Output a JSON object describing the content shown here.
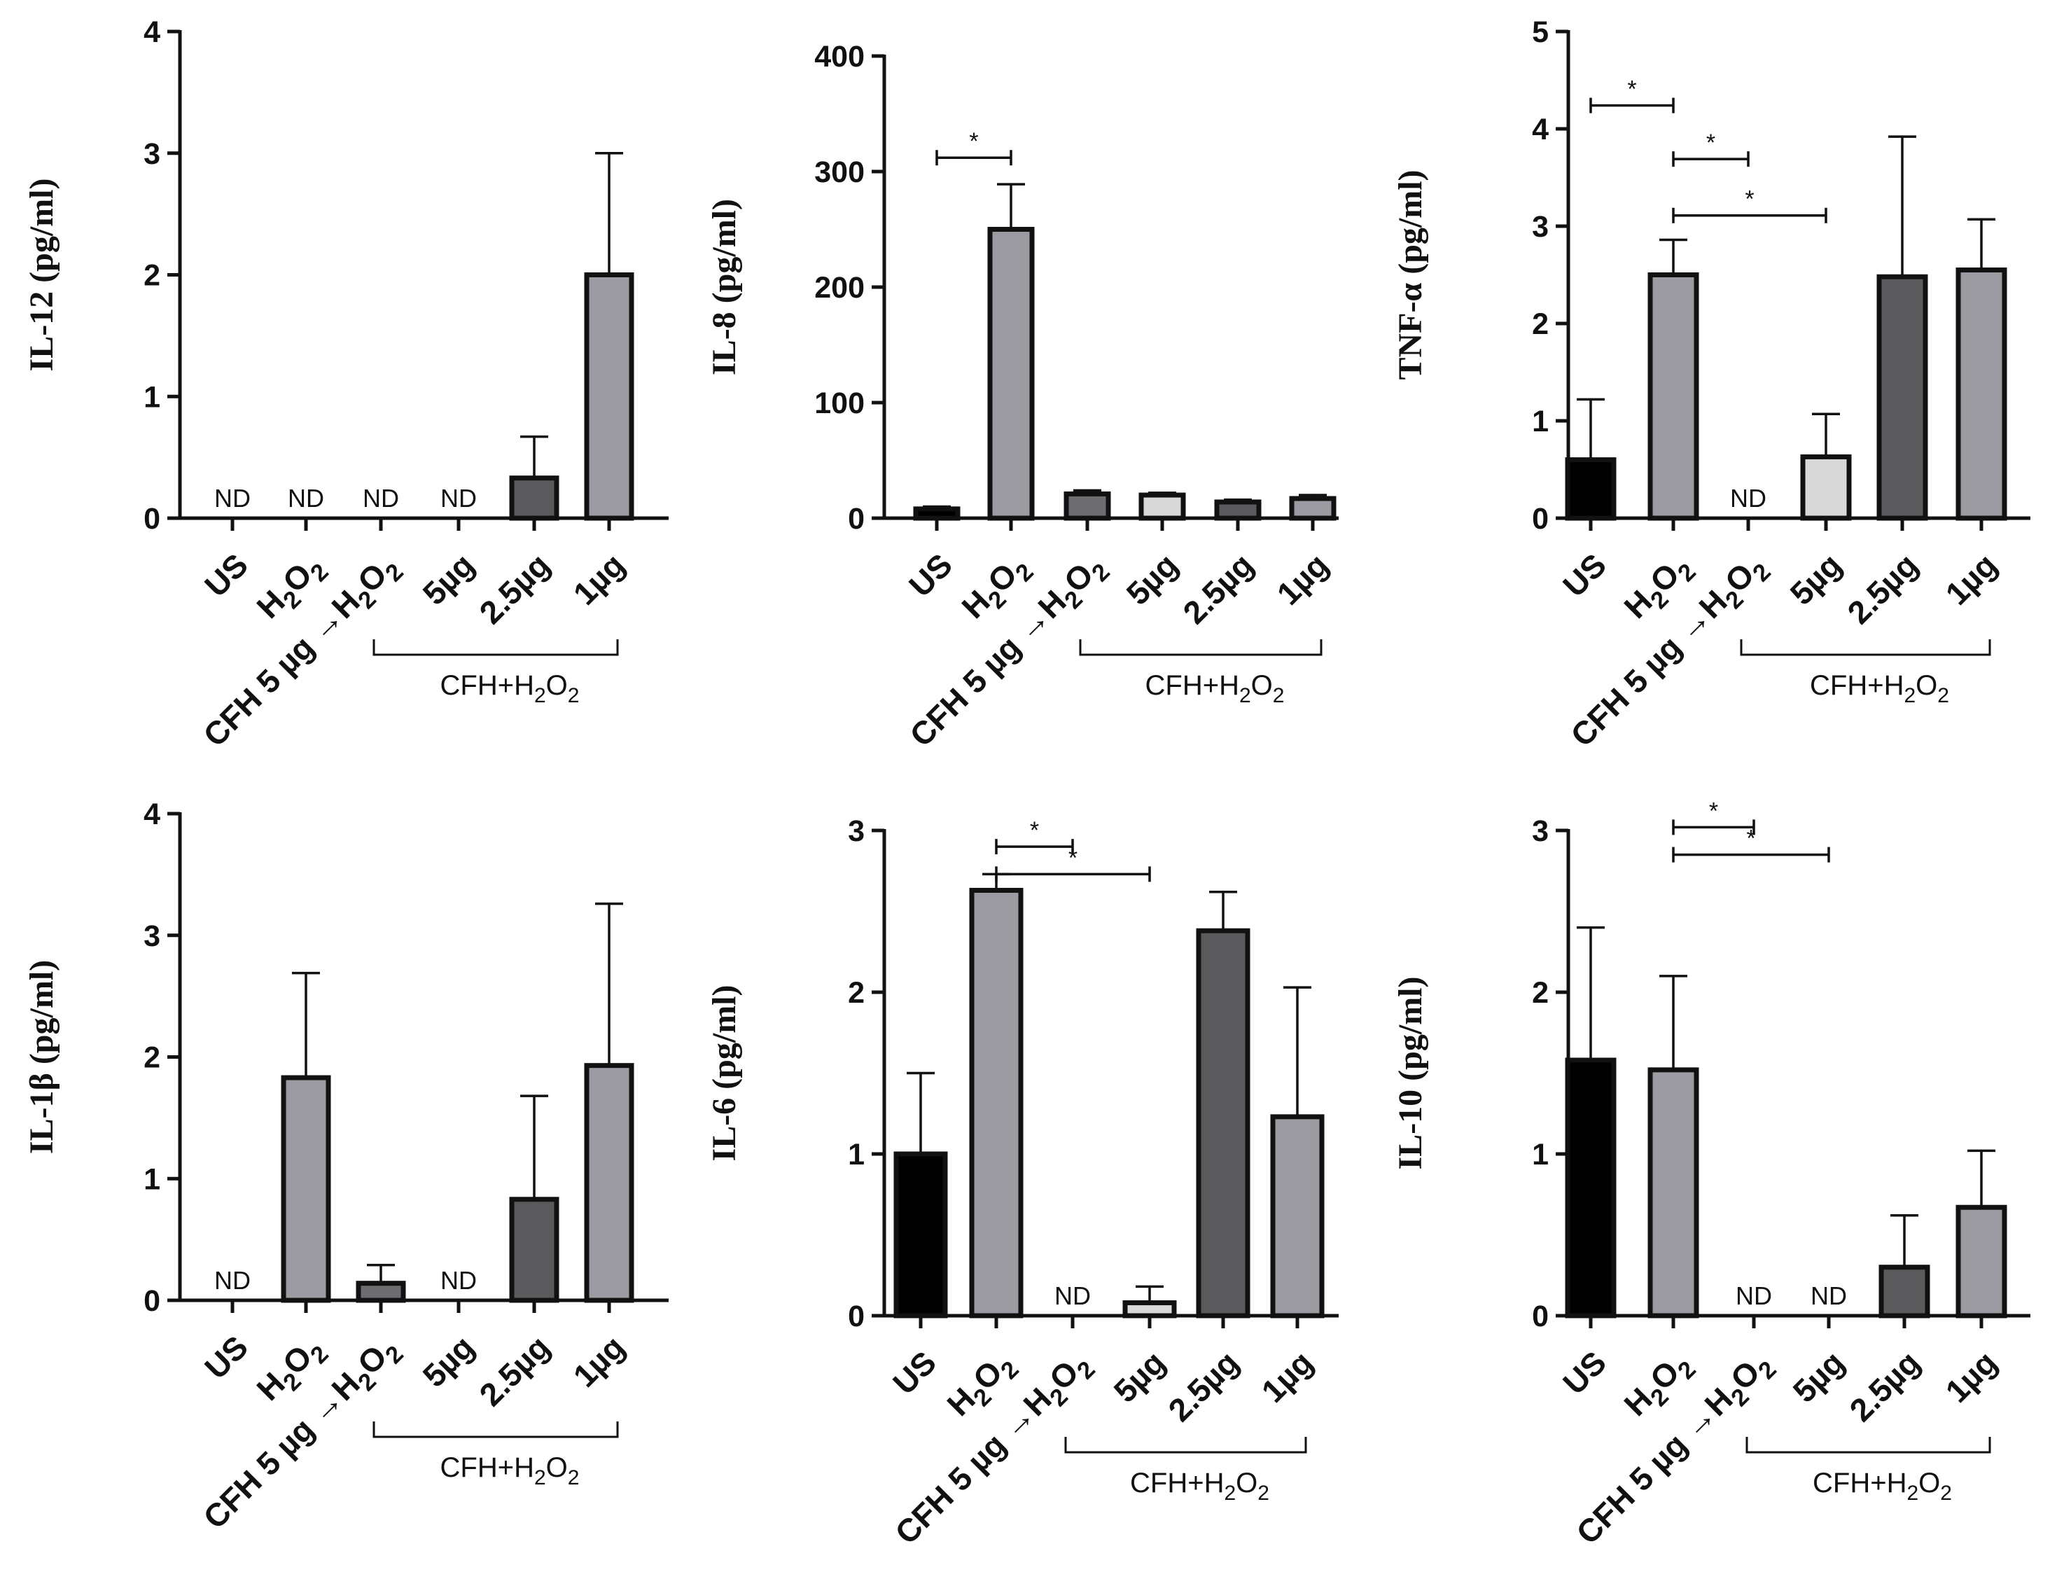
{
  "chart_data": [
    {
      "type": "bar",
      "title": "",
      "ylabel": "IL-12 (pg/ml)",
      "ylim": [
        0,
        4
      ],
      "yticks": [
        "0",
        "1",
        "2",
        "3",
        "4"
      ],
      "categories": [
        "US",
        "H2O2",
        "CFH 5 µg →H2O2",
        "5µg",
        "2.5µg",
        "1µg"
      ],
      "values": [
        0,
        0,
        0,
        0,
        0.33,
        2.0
      ],
      "errors": [
        0,
        0,
        0,
        0,
        0.34,
        1.0
      ],
      "nd": [
        true,
        true,
        true,
        true,
        false,
        false
      ],
      "nd_label": "ND",
      "colors": [
        "#000000",
        "#9b9ba1",
        "#6e6e72",
        "#d9d9d9",
        "#5a5a5c",
        "#9b9ba1"
      ],
      "group_label": "CFH+H2O2",
      "significance": []
    },
    {
      "type": "bar",
      "title": "",
      "ylabel": "IL-8 (pg/ml)",
      "ylim": [
        0,
        400
      ],
      "yticks": [
        "0",
        "100",
        "200",
        "300",
        "400"
      ],
      "categories": [
        "US",
        "H2O2",
        "CFH 5 µg →H2O2",
        "5µg",
        "2.5µg",
        "1µg"
      ],
      "values": [
        8,
        250,
        21,
        20,
        14,
        17
      ],
      "errors": [
        2,
        39,
        3,
        2,
        2,
        3
      ],
      "nd": [
        false,
        false,
        false,
        false,
        false,
        false
      ],
      "nd_label": "ND",
      "colors": [
        "#000000",
        "#9b9ba1",
        "#6e6e72",
        "#d9d9d9",
        "#5a5a5c",
        "#9b9ba1"
      ],
      "group_label": "CFH+H2O2",
      "significance": [
        {
          "from": 0,
          "to": 1,
          "y": 312,
          "label": "*"
        }
      ]
    },
    {
      "type": "bar",
      "title": "",
      "ylabel": "TNF-α (pg/ml)",
      "ylim": [
        0,
        5
      ],
      "yticks": [
        "0",
        "1",
        "2",
        "3",
        "4",
        "5"
      ],
      "categories": [
        "US",
        "H2O2",
        "CFH 5 µg →H2O2",
        "5µg",
        "2.5µg",
        "1µg"
      ],
      "values": [
        0.6,
        2.5,
        0,
        0.63,
        2.48,
        2.55
      ],
      "errors": [
        0.62,
        0.36,
        0,
        0.44,
        1.44,
        0.52
      ],
      "nd": [
        false,
        false,
        true,
        false,
        false,
        false
      ],
      "nd_label": "ND",
      "colors": [
        "#000000",
        "#9b9ba1",
        "#6e6e72",
        "#d9d9d9",
        "#5a5a5c",
        "#9b9ba1"
      ],
      "group_label": "CFH+H2O2",
      "significance": [
        {
          "from": 0,
          "to": 1,
          "y": 4.24,
          "label": "*"
        },
        {
          "from": 1,
          "to": 2,
          "y": 3.69,
          "label": "*"
        },
        {
          "from": 1,
          "to": 3,
          "y": 3.11,
          "label": "*"
        }
      ]
    },
    {
      "type": "bar",
      "title": "",
      "ylabel": "IL-1β (pg/ml)",
      "ylim": [
        0,
        4
      ],
      "yticks": [
        "0",
        "1",
        "2",
        "3",
        "4"
      ],
      "categories": [
        "US",
        "H2O2",
        "CFH 5 µg →H2O2",
        "5µg",
        "2.5µg",
        "1µg"
      ],
      "values": [
        0,
        1.83,
        0.14,
        0,
        0.83,
        1.93
      ],
      "errors": [
        0,
        0.86,
        0.15,
        0,
        0.85,
        1.33
      ],
      "nd": [
        true,
        false,
        false,
        true,
        false,
        false
      ],
      "nd_label": "ND",
      "colors": [
        "#000000",
        "#9b9ba1",
        "#6e6e72",
        "#d9d9d9",
        "#5a5a5c",
        "#9b9ba1"
      ],
      "group_label": "CFH+H2O2",
      "significance": []
    },
    {
      "type": "bar",
      "title": "",
      "ylabel": "IL-6 (pg/ml)",
      "ylim": [
        0,
        3
      ],
      "yticks": [
        "0",
        "1",
        "2",
        "3"
      ],
      "categories": [
        "US",
        "H2O2",
        "CFH 5 µg →H2O2",
        "5µg",
        "2.5µg",
        "1µg"
      ],
      "values": [
        1.0,
        2.63,
        0,
        0.08,
        2.38,
        1.23
      ],
      "errors": [
        0.5,
        0.1,
        0,
        0.1,
        0.24,
        0.8
      ],
      "nd": [
        false,
        false,
        true,
        false,
        false,
        false
      ],
      "nd_label": "ND",
      "colors": [
        "#000000",
        "#9b9ba1",
        "#6e6e72",
        "#d9d9d9",
        "#5a5a5c",
        "#9b9ba1"
      ],
      "group_label": "CFH+H2O2",
      "significance": [
        {
          "from": 1,
          "to": 2,
          "y": 2.9,
          "label": "*"
        },
        {
          "from": 1,
          "to": 3,
          "y": 2.73,
          "label": "*"
        }
      ]
    },
    {
      "type": "bar",
      "title": "",
      "ylabel": "IL-10 (pg/ml)",
      "ylim": [
        0,
        3
      ],
      "yticks": [
        "0",
        "1",
        "2",
        "3"
      ],
      "categories": [
        "US",
        "H2O2",
        "CFH 5 µg →H2O2",
        "5µg",
        "2.5µg",
        "1µg"
      ],
      "values": [
        1.58,
        1.52,
        0,
        0,
        0.3,
        0.67
      ],
      "errors": [
        0.82,
        0.58,
        0,
        0,
        0.32,
        0.35
      ],
      "nd": [
        false,
        false,
        true,
        true,
        false,
        false
      ],
      "nd_label": "ND",
      "colors": [
        "#000000",
        "#9b9ba1",
        "#6e6e72",
        "#d9d9d9",
        "#5a5a5c",
        "#9b9ba1"
      ],
      "group_label": "CFH+H2O2",
      "significance": [
        {
          "from": 1,
          "to": 2,
          "y": 3.02,
          "label": "*"
        },
        {
          "from": 1,
          "to": 3,
          "y": 2.85,
          "label": "*"
        }
      ]
    }
  ]
}
